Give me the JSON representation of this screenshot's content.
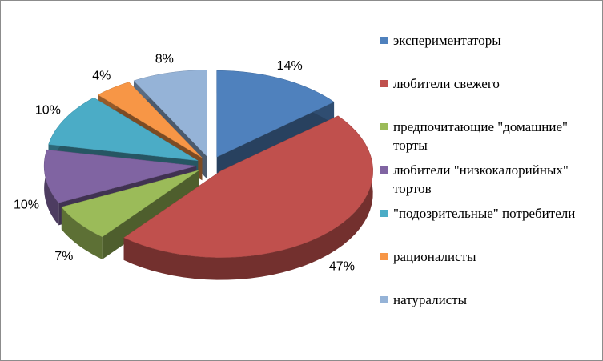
{
  "chart_data": {
    "type": "pie3d",
    "categories": [
      "экспериментаторы",
      "любители свежего",
      "предпочитающие \"домашние\" торты",
      "любители \"низкокалорийных\" тортов",
      "\"подозрительные\" потребители",
      "рационалисты",
      "натуралисты"
    ],
    "values": [
      14,
      47,
      7,
      10,
      10,
      4,
      8
    ],
    "value_labels": [
      "14%",
      "47%",
      "7%",
      "10%",
      "10%",
      "4%",
      "8%"
    ],
    "colors": [
      "#4f81bd",
      "#c0504d",
      "#9bbb59",
      "#8064a2",
      "#4bacc6",
      "#f79646",
      "#95b3d7"
    ],
    "legend": "right"
  }
}
